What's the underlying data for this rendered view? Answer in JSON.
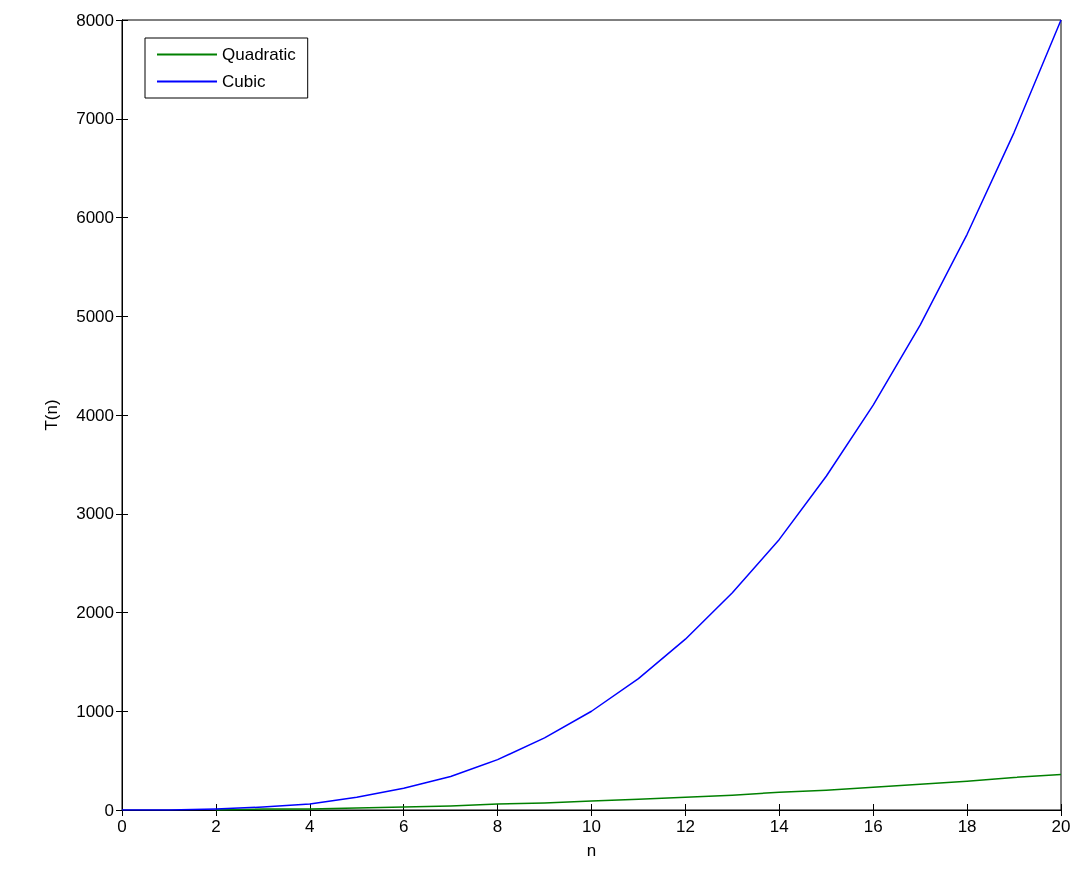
{
  "chart_data": {
    "type": "line",
    "xlabel": "n",
    "ylabel": "T(n)",
    "x": [
      0,
      1,
      2,
      3,
      4,
      5,
      6,
      7,
      8,
      9,
      10,
      11,
      12,
      13,
      14,
      15,
      16,
      17,
      18,
      19,
      20
    ],
    "series": [
      {
        "name": "Quadratic",
        "color": "#008000",
        "values": [
          null,
          null,
          0,
          10,
          10,
          20,
          30,
          40,
          60,
          70,
          90,
          110,
          130,
          150,
          180,
          200,
          230,
          260,
          290,
          330,
          360
        ]
      },
      {
        "name": "Cubic",
        "color": "#0000ff",
        "values": [
          0,
          0,
          10,
          30,
          60,
          130,
          220,
          340,
          510,
          730,
          1000,
          1330,
          1730,
          2200,
          2740,
          3380,
          4100,
          4910,
          5830,
          6860,
          8000
        ]
      }
    ],
    "xlim": [
      0,
      20
    ],
    "xticks": [
      0,
      2,
      4,
      6,
      8,
      10,
      12,
      14,
      16,
      18,
      20
    ],
    "ylim": [
      0,
      8000
    ],
    "yticks": [
      0,
      1000,
      2000,
      3000,
      4000,
      5000,
      6000,
      7000,
      8000
    ],
    "grid": false,
    "legend": "top left",
    "marker": "none",
    "line_style": "solid"
  }
}
